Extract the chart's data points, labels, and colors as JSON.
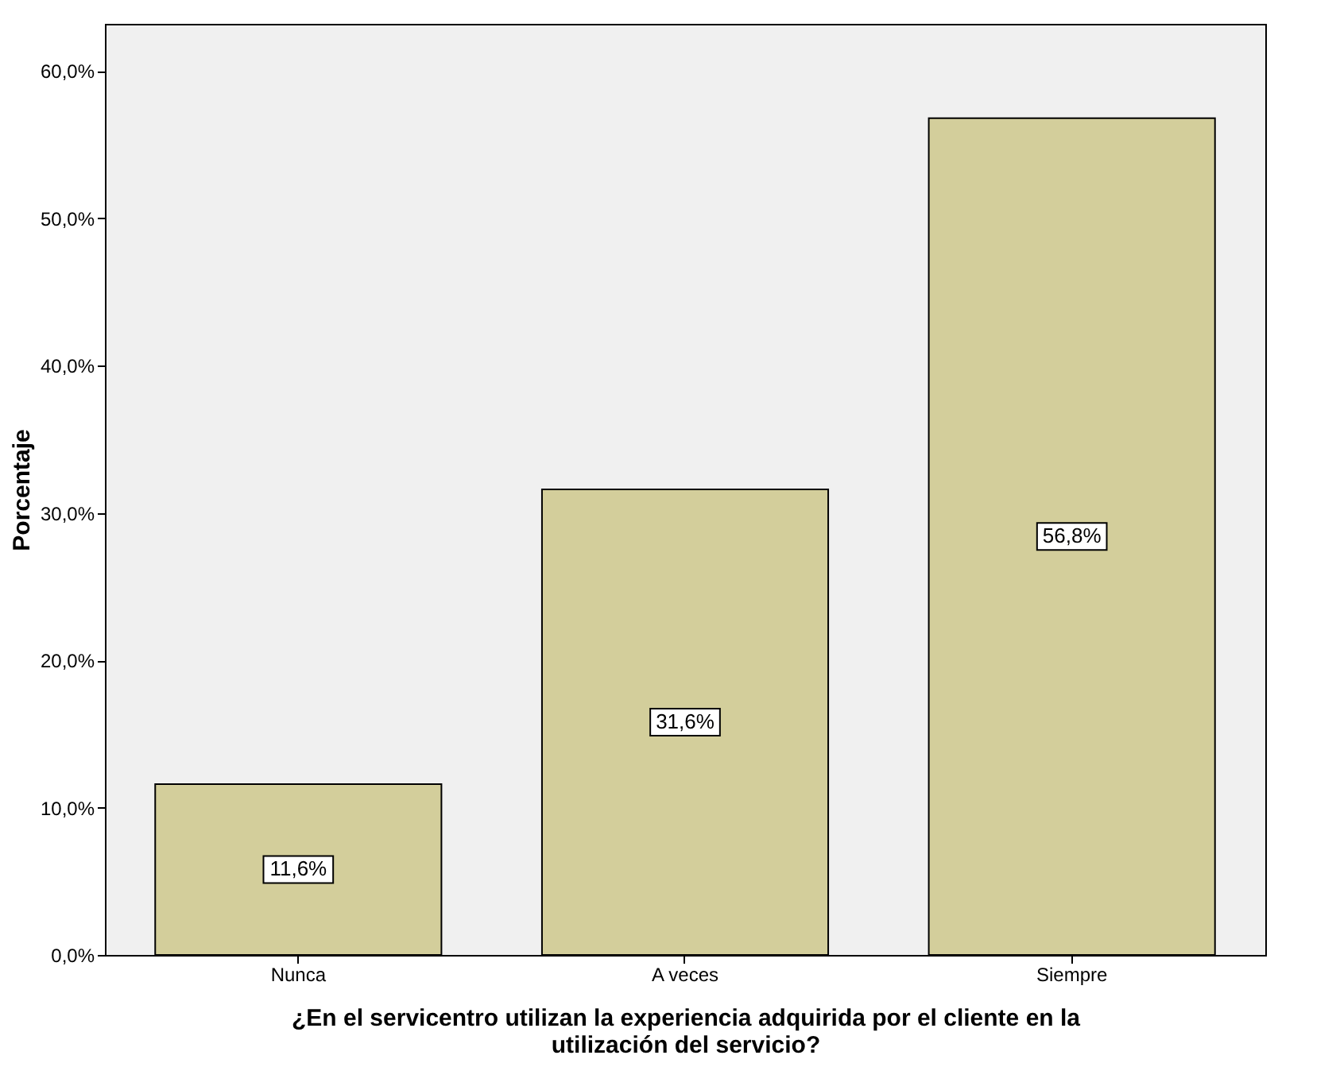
{
  "chart_data": {
    "type": "bar",
    "xlabel": "¿En el servicentro utilizan la experiencia adquirida por el cliente en la utilización del servicio?",
    "ylabel": "Porcentaje",
    "categories": [
      "Nunca",
      "A veces",
      "Siempre"
    ],
    "values": [
      11.6,
      31.6,
      56.8
    ],
    "value_labels": [
      "11,6%",
      "31,6%",
      "56,8%"
    ],
    "color": "#d3ce9b",
    "ylim": [
      0,
      63.2
    ],
    "yticks": [
      {
        "value": 0,
        "label": "0,0%"
      },
      {
        "value": 10,
        "label": "10,0%"
      },
      {
        "value": 20,
        "label": "20,0%"
      },
      {
        "value": 30,
        "label": "30,0%"
      },
      {
        "value": 40,
        "label": "40,0%"
      },
      {
        "value": 50,
        "label": "50,0%"
      },
      {
        "value": 60,
        "label": "60,0%"
      }
    ],
    "grid": false
  }
}
